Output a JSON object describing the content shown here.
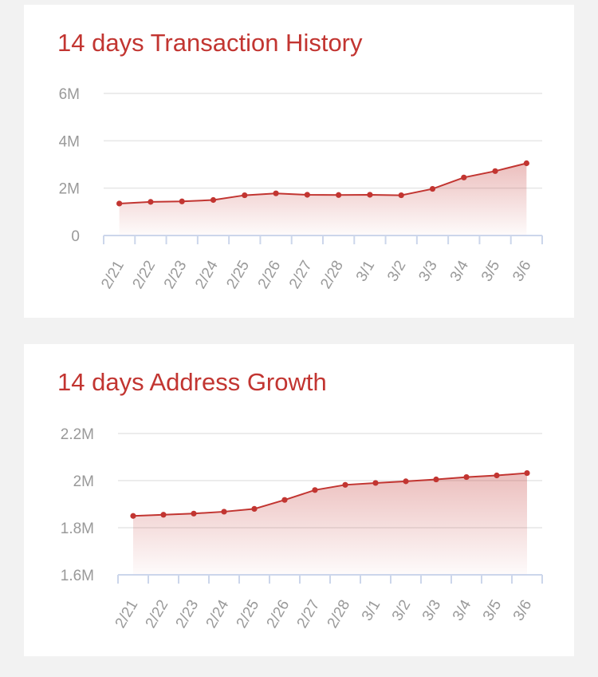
{
  "colors": {
    "accent": "#c23531",
    "axis": "#ccd6eb",
    "grid": "#e6e6e6",
    "label": "#999999",
    "background": "#f2f2f2",
    "card": "#ffffff"
  },
  "chart_data": [
    {
      "type": "area",
      "title": "14 days Transaction History",
      "xlabel": "",
      "ylabel": "",
      "categories": [
        "2/21",
        "2/22",
        "2/23",
        "2/24",
        "2/25",
        "2/26",
        "2/27",
        "2/28",
        "3/1",
        "3/2",
        "3/3",
        "3/4",
        "3/5",
        "3/6"
      ],
      "series": [
        {
          "values": [
            1.35,
            1.42,
            1.44,
            1.5,
            1.7,
            1.78,
            1.72,
            1.71,
            1.72,
            1.7,
            1.97,
            2.45,
            2.72,
            3.05
          ]
        }
      ],
      "unit": "M",
      "ylim": [
        0,
        6
      ],
      "yticks": [
        0,
        2,
        4,
        6
      ],
      "ytick_labels": [
        "0",
        "2M",
        "4M",
        "6M"
      ],
      "grid": true,
      "legend": "none",
      "marker": "dot"
    },
    {
      "type": "area",
      "title": "14 days Address Growth",
      "xlabel": "",
      "ylabel": "",
      "categories": [
        "2/21",
        "2/22",
        "2/23",
        "2/24",
        "2/25",
        "2/26",
        "2/27",
        "2/28",
        "3/1",
        "3/2",
        "3/3",
        "3/4",
        "3/5",
        "3/6"
      ],
      "series": [
        {
          "values": [
            1.85,
            1.855,
            1.86,
            1.868,
            1.88,
            1.918,
            1.96,
            1.982,
            1.99,
            1.997,
            2.005,
            2.015,
            2.022,
            2.032
          ]
        }
      ],
      "unit": "M",
      "ylim": [
        1.6,
        2.2
      ],
      "yticks": [
        1.6,
        1.8,
        2.0,
        2.2
      ],
      "ytick_labels": [
        "1.6M",
        "1.8M",
        "2M",
        "2.2M"
      ],
      "grid": true,
      "legend": "none",
      "marker": "dot"
    }
  ]
}
